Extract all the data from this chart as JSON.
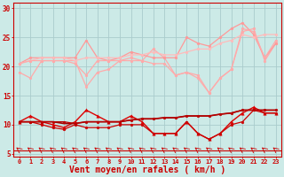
{
  "background_color": "#cceae7",
  "grid_color": "#aacccc",
  "xlabel": "Vent moyen/en rafales ( km/h )",
  "xlabel_color": "#cc0000",
  "xlabel_fontsize": 7,
  "tick_color": "#cc0000",
  "arrow_color": "#cc0000",
  "xlim": [
    -0.5,
    23.5
  ],
  "ylim": [
    4.5,
    31
  ],
  "yticks": [
    5,
    10,
    15,
    20,
    25,
    30
  ],
  "xticks": [
    0,
    1,
    2,
    3,
    4,
    5,
    6,
    7,
    8,
    9,
    10,
    11,
    12,
    13,
    14,
    15,
    16,
    17,
    18,
    19,
    20,
    21,
    22,
    23
  ],
  "lines_light": [
    {
      "x": [
        0,
        1,
        2,
        3,
        4,
        5,
        6,
        7,
        8,
        9,
        10,
        11,
        12,
        13,
        14,
        15,
        16,
        17,
        18,
        19,
        20,
        21,
        22,
        23
      ],
      "y": [
        19.0,
        18.0,
        21.0,
        21.0,
        21.0,
        21.0,
        16.5,
        19.0,
        19.5,
        21.0,
        21.0,
        21.0,
        23.0,
        21.5,
        18.5,
        19.0,
        18.0,
        15.5,
        18.0,
        19.5,
        26.0,
        26.5,
        21.0,
        24.0
      ],
      "color": "#ffaaaa",
      "marker": "o",
      "markersize": 2,
      "linewidth": 0.9
    },
    {
      "x": [
        0,
        1,
        2,
        3,
        4,
        5,
        6,
        7,
        8,
        9,
        10,
        11,
        12,
        13,
        14,
        15,
        16,
        17,
        18,
        19,
        20,
        21,
        22,
        23
      ],
      "y": [
        20.5,
        21.5,
        21.5,
        21.5,
        21.5,
        21.5,
        24.5,
        21.5,
        21.0,
        21.5,
        22.5,
        22.0,
        21.5,
        21.5,
        21.5,
        25.0,
        24.0,
        23.5,
        25.0,
        26.5,
        27.5,
        25.5,
        21.5,
        24.0
      ],
      "color": "#ff9999",
      "marker": "o",
      "markersize": 2,
      "linewidth": 0.9
    },
    {
      "x": [
        0,
        1,
        2,
        3,
        4,
        5,
        6,
        7,
        8,
        9,
        10,
        11,
        12,
        13,
        14,
        15,
        16,
        17,
        18,
        19,
        20,
        21,
        22,
        23
      ],
      "y": [
        20.5,
        21.0,
        21.5,
        21.5,
        21.5,
        21.0,
        21.5,
        21.5,
        21.5,
        21.5,
        22.0,
        22.0,
        22.5,
        22.0,
        22.0,
        22.5,
        23.0,
        23.0,
        24.0,
        24.5,
        25.5,
        25.0,
        25.5,
        25.5
      ],
      "color": "#ffbbbb",
      "marker": "o",
      "markersize": 2,
      "linewidth": 0.9
    },
    {
      "x": [
        0,
        1,
        2,
        3,
        4,
        5,
        6,
        7,
        8,
        9,
        10,
        11,
        12,
        13,
        14,
        15,
        16,
        17,
        18,
        19,
        20,
        21,
        22,
        23
      ],
      "y": [
        20.5,
        21.0,
        21.0,
        21.0,
        21.0,
        20.5,
        18.5,
        21.0,
        21.0,
        21.0,
        21.5,
        21.0,
        20.5,
        20.5,
        18.5,
        19.0,
        18.5,
        15.5,
        18.0,
        19.5,
        26.5,
        26.0,
        21.5,
        24.5
      ],
      "color": "#ffaaaa",
      "marker": "o",
      "markersize": 2,
      "linewidth": 0.9
    }
  ],
  "lines_dark": [
    {
      "x": [
        0,
        1,
        2,
        3,
        4,
        5,
        6,
        7,
        8,
        9,
        10,
        11,
        12,
        13,
        14,
        15,
        16,
        17,
        18,
        19,
        20,
        21,
        22,
        23
      ],
      "y": [
        10.5,
        11.5,
        10.5,
        10.0,
        9.5,
        10.5,
        12.5,
        11.5,
        10.5,
        10.5,
        11.5,
        10.5,
        8.5,
        8.5,
        8.5,
        10.5,
        8.5,
        7.5,
        8.5,
        10.5,
        12.0,
        13.0,
        12.0,
        12.0
      ],
      "color": "#dd0000",
      "marker": "^",
      "markersize": 2.5,
      "linewidth": 1.0
    },
    {
      "x": [
        0,
        1,
        2,
        3,
        4,
        5,
        6,
        7,
        8,
        9,
        10,
        11,
        12,
        13,
        14,
        15,
        16,
        17,
        18,
        19,
        20,
        21,
        22,
        23
      ],
      "y": [
        10.5,
        10.5,
        10.5,
        10.5,
        10.2,
        10.2,
        10.5,
        10.5,
        10.5,
        10.5,
        10.8,
        11.0,
        11.0,
        11.2,
        11.2,
        11.5,
        11.5,
        11.5,
        11.8,
        12.0,
        12.5,
        12.5,
        12.5,
        12.5
      ],
      "color": "#990000",
      "marker": "None",
      "markersize": 2,
      "linewidth": 1.2
    },
    {
      "x": [
        0,
        1,
        2,
        3,
        4,
        5,
        6,
        7,
        8,
        9,
        10,
        11,
        12,
        13,
        14,
        15,
        16,
        17,
        18,
        19,
        20,
        21,
        22,
        23
      ],
      "y": [
        10.5,
        10.5,
        10.0,
        9.5,
        9.2,
        10.0,
        9.5,
        9.5,
        9.5,
        10.0,
        10.0,
        10.0,
        8.5,
        8.5,
        8.5,
        10.5,
        8.5,
        7.5,
        8.5,
        10.0,
        10.5,
        12.5,
        12.0,
        12.0
      ],
      "color": "#cc0000",
      "marker": "o",
      "markersize": 2,
      "linewidth": 0.9
    },
    {
      "x": [
        0,
        1,
        2,
        3,
        4,
        5,
        6,
        7,
        8,
        9,
        10,
        11,
        12,
        13,
        14,
        15,
        16,
        17,
        18,
        19,
        20,
        21,
        22,
        23
      ],
      "y": [
        10.5,
        10.5,
        10.5,
        10.5,
        10.5,
        10.2,
        10.5,
        10.5,
        10.5,
        10.5,
        10.8,
        11.0,
        11.0,
        11.2,
        11.2,
        11.5,
        11.5,
        11.5,
        11.8,
        12.0,
        12.5,
        12.5,
        12.5,
        12.5
      ],
      "color": "#bb0000",
      "marker": "o",
      "markersize": 2,
      "linewidth": 0.9
    }
  ]
}
